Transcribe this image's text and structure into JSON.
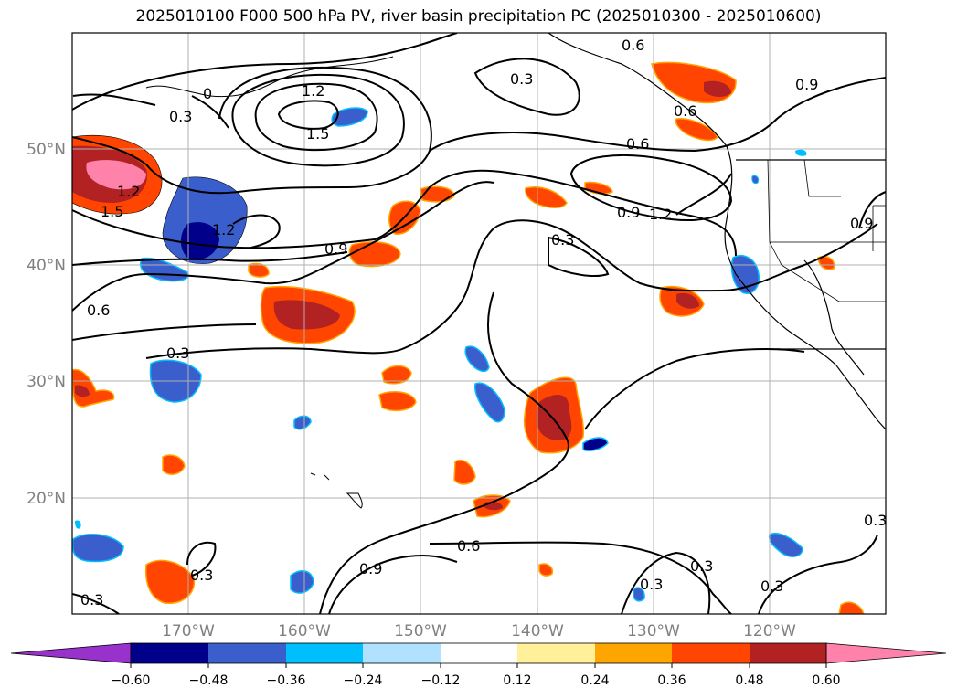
{
  "title": "2025010100 F000 500 hPa PV, river basin precipitation PC (2025010300 - 2025010600)",
  "lat_labels": [
    "50°N",
    "40°N",
    "30°N",
    "20°N"
  ],
  "lon_labels": [
    "170°W",
    "160°W",
    "150°W",
    "140°W",
    "130°W",
    "120°W"
  ],
  "contour_labels": [
    "0.6",
    "0.3",
    "0.9",
    "0.6",
    "0.6",
    "1.2",
    "1.5",
    "0.3",
    "0",
    "1.5",
    "1.2",
    "1.2",
    "0.9",
    "0.9",
    "1.2",
    "0.3",
    "0.6",
    "0.3",
    "0.3",
    "0.6",
    "0.9",
    "0.3",
    "0.3",
    "0.3",
    "0.3",
    "0.3",
    "0.9"
  ],
  "colorbar": {
    "tick_labels": [
      "−0.60",
      "−0.48",
      "−0.36",
      "−0.24",
      "−0.12",
      "0.12",
      "0.24",
      "0.36",
      "0.48",
      "0.60"
    ],
    "colors": [
      "#9932cc",
      "#00008b",
      "#3a5fcd",
      "#00bfff",
      "#b0e2ff",
      "#ffffff",
      "#fff099",
      "#ffa500",
      "#ff4500",
      "#b22222",
      "#ff82ab"
    ]
  },
  "map": {
    "lat_range": [
      10,
      60
    ],
    "lon_range": [
      -180,
      -110
    ],
    "gridlines": true,
    "field_contours": "500 hPa PV",
    "shading": "river basin precipitation PC"
  }
}
